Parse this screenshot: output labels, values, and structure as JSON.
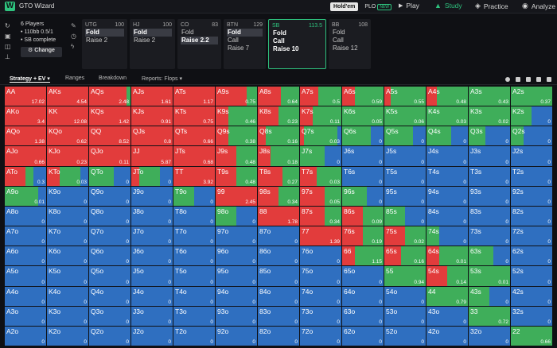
{
  "app": {
    "brand": "GTO Wizard",
    "logo_letter": "W"
  },
  "game_switch": {
    "holdem": "Hold'em",
    "plo": "PLO",
    "new_badge": "NEW"
  },
  "nav": [
    {
      "label": "Play",
      "icon": "play-icon",
      "glyph": "▶"
    },
    {
      "label": "Study",
      "icon": "study-icon",
      "glyph": "🎓"
    },
    {
      "label": "Practice",
      "icon": "practice-icon",
      "glyph": "🎮"
    },
    {
      "label": "Analyze",
      "icon": "analyze-icon",
      "glyph": "🤖"
    }
  ],
  "scenario": {
    "players": "6 Players",
    "stakes": "• 110bb 0.5/1",
    "status": "• SB complete",
    "change_label": "Change"
  },
  "positions": [
    {
      "name": "UTG",
      "stack": "100",
      "actions": [
        "Fold",
        "Raise 2"
      ],
      "selected": 0
    },
    {
      "name": "HJ",
      "stack": "100",
      "actions": [
        "Fold",
        "Raise 2"
      ],
      "selected": 0
    },
    {
      "name": "CO",
      "stack": "83",
      "actions": [
        "Fold",
        "Raise 2.2"
      ],
      "selected": 1
    },
    {
      "name": "BTN",
      "stack": "129",
      "actions": [
        "Fold",
        "Call",
        "Raise 7"
      ],
      "selected": 0
    },
    {
      "name": "SB",
      "stack": "113.5",
      "actions": [
        "Fold",
        "Call",
        "Raise 10"
      ],
      "selected": -1
    },
    {
      "name": "BB",
      "stack": "108",
      "actions": [
        "Fold",
        "Call",
        "Raise 12"
      ],
      "selected": -1
    }
  ],
  "subtabs": {
    "strategy": "Strategy + EV",
    "ranges": "Ranges",
    "breakdown": "Breakdown",
    "reports": "Reports: Flops"
  },
  "colors": {
    "fold": "#2f6fc0",
    "call": "#3fae5a",
    "raise": "#e23c3c",
    "accent": "#2ec27e"
  },
  "grid": {
    "ranks": [
      "A",
      "K",
      "Q",
      "J",
      "T",
      "9",
      "8",
      "7",
      "6",
      "5",
      "4",
      "3",
      "2"
    ],
    "ev": [
      [
        "17.02",
        "4.54",
        "2.48",
        "1.61",
        "1.17",
        "0.75",
        "0.64",
        "0.5",
        "0.59",
        "0.55",
        "0.48",
        "0.43",
        "0.37"
      ],
      [
        "3.4",
        "12.08",
        "1.42",
        "0.91",
        "0.75",
        "0.46",
        "0.23",
        "0.11",
        "0.05",
        "0.06",
        "0.03",
        "0.02",
        "0"
      ],
      [
        "1.38",
        "0.62",
        "8.52",
        "0.8",
        "0.66",
        "0.38",
        "0.16",
        "0.03",
        "0",
        "0",
        "0",
        "0",
        "0"
      ],
      [
        "0.66",
        "0.23",
        "0.11",
        "5.87",
        "0.68",
        "0.48",
        "0.18",
        "0",
        "0",
        "0",
        "0",
        "0",
        "0"
      ],
      [
        "0.3",
        "0.03",
        "0",
        "0",
        "3.92",
        "0.48",
        "0.27",
        "0.03",
        "0",
        "0",
        "0",
        "0",
        "0"
      ],
      [
        "0.01",
        "0",
        "0",
        "0",
        "0",
        "2.45",
        "0.34",
        "0.05",
        "0",
        "0",
        "0",
        "0",
        "0"
      ],
      [
        "0",
        "0",
        "0",
        "0",
        "0",
        "0",
        "1.78",
        "0.34",
        "0.09",
        "0",
        "0",
        "0",
        "0"
      ],
      [
        "0",
        "0",
        "0",
        "0",
        "0",
        "0",
        "0",
        "1.39",
        "0.19",
        "0.02",
        "0",
        "0",
        "0"
      ],
      [
        "0",
        "0",
        "0",
        "0",
        "0",
        "0",
        "0",
        "0",
        "1.15",
        "0.16",
        "0.01",
        "0",
        "0"
      ],
      [
        "0",
        "0",
        "0",
        "0",
        "0",
        "0",
        "0",
        "0",
        "0",
        "0.94",
        "0.14",
        "0.01",
        "0"
      ],
      [
        "0",
        "0",
        "0",
        "0",
        "0",
        "0",
        "0",
        "0",
        "0",
        "0",
        "0.79",
        "0",
        "0"
      ],
      [
        "0",
        "0",
        "0",
        "0",
        "0",
        "0",
        "0",
        "0",
        "0",
        "0",
        "0",
        "0.72",
        "0"
      ],
      [
        "0",
        "0",
        "0",
        "0",
        "0",
        "0",
        "0",
        "0",
        "0",
        "0",
        "0",
        "0",
        "0.66"
      ]
    ],
    "mix": [
      [
        [
          1,
          0,
          0
        ],
        [
          1,
          0,
          0
        ],
        [
          0.9,
          0.1,
          0
        ],
        [
          1,
          0,
          0
        ],
        [
          1,
          0,
          0
        ],
        [
          0.75,
          0.25,
          0
        ],
        [
          0.55,
          0.45,
          0
        ],
        [
          0.45,
          0.55,
          0
        ],
        [
          0.3,
          0.7,
          0
        ],
        [
          0.15,
          0.85,
          0
        ],
        [
          0.25,
          0.75,
          0
        ],
        [
          0,
          1,
          0
        ],
        [
          0,
          1,
          0
        ]
      ],
      [
        [
          1,
          0,
          0
        ],
        [
          1,
          0,
          0
        ],
        [
          1,
          0,
          0
        ],
        [
          1,
          0,
          0
        ],
        [
          1,
          0,
          0
        ],
        [
          0.3,
          0.7,
          0
        ],
        [
          0.5,
          0.5,
          0
        ],
        [
          0.3,
          0.7,
          0
        ],
        [
          0,
          1,
          0
        ],
        [
          0,
          1,
          0
        ],
        [
          0,
          1,
          0
        ],
        [
          0,
          1,
          0
        ],
        [
          0,
          0.5,
          0.5
        ]
      ],
      [
        [
          1,
          0,
          0
        ],
        [
          1,
          0,
          0
        ],
        [
          1,
          0,
          0
        ],
        [
          1,
          0,
          0
        ],
        [
          1,
          0,
          0
        ],
        [
          0.3,
          0.7,
          0
        ],
        [
          0.2,
          0.8,
          0
        ],
        [
          0.1,
          0.8,
          0.1
        ],
        [
          0,
          0.7,
          0.3
        ],
        [
          0,
          0.7,
          0.3
        ],
        [
          0,
          0.6,
          0.4
        ],
        [
          0,
          0.4,
          0.6
        ],
        [
          0,
          0.3,
          0.7
        ]
      ],
      [
        [
          1,
          0,
          0
        ],
        [
          1,
          0,
          0
        ],
        [
          1,
          0,
          0
        ],
        [
          1,
          0,
          0
        ],
        [
          1,
          0,
          0
        ],
        [
          0.5,
          0.5,
          0
        ],
        [
          0.3,
          0.7,
          0
        ],
        [
          0,
          0.6,
          0.4
        ],
        [
          0,
          0,
          1
        ],
        [
          0,
          0,
          1
        ],
        [
          0,
          0,
          1
        ],
        [
          0,
          0,
          1
        ],
        [
          0,
          0,
          1
        ]
      ],
      [
        [
          0.5,
          0.2,
          0.3
        ],
        [
          0.3,
          0.5,
          0.2
        ],
        [
          0,
          0.6,
          0.4
        ],
        [
          0.2,
          0.5,
          0.3
        ],
        [
          1,
          0,
          0
        ],
        [
          0.5,
          0.5,
          0
        ],
        [
          0.6,
          0.4,
          0
        ],
        [
          0.4,
          0.6,
          0
        ],
        [
          0,
          0,
          1
        ],
        [
          0,
          0,
          1
        ],
        [
          0,
          0,
          1
        ],
        [
          0,
          0,
          1
        ],
        [
          0,
          0,
          1
        ]
      ],
      [
        [
          0,
          0.8,
          0.2
        ],
        [
          0,
          0,
          1
        ],
        [
          0,
          0,
          1
        ],
        [
          0,
          0,
          1
        ],
        [
          0,
          0.5,
          0.5
        ],
        [
          1,
          0,
          0
        ],
        [
          0.5,
          0.5,
          0
        ],
        [
          0.6,
          0.4,
          0
        ],
        [
          0,
          0.6,
          0.4
        ],
        [
          0,
          0,
          1
        ],
        [
          0,
          0,
          1
        ],
        [
          0,
          0,
          1
        ],
        [
          0,
          0,
          1
        ]
      ],
      [
        [
          0,
          0,
          1
        ],
        [
          0,
          0,
          1
        ],
        [
          0,
          0,
          1
        ],
        [
          0,
          0,
          1
        ],
        [
          0,
          0,
          1
        ],
        [
          0,
          0.5,
          0.5
        ],
        [
          1,
          0,
          0
        ],
        [
          0.6,
          0.4,
          0
        ],
        [
          0.5,
          0.5,
          0
        ],
        [
          0,
          0.5,
          0.5
        ],
        [
          0,
          0,
          1
        ],
        [
          0,
          0,
          1
        ],
        [
          0,
          0,
          1
        ]
      ],
      [
        [
          0,
          0,
          1
        ],
        [
          0,
          0,
          1
        ],
        [
          0,
          0,
          1
        ],
        [
          0,
          0,
          1
        ],
        [
          0,
          0,
          1
        ],
        [
          0,
          0,
          1
        ],
        [
          0,
          0,
          1
        ],
        [
          1,
          0,
          0
        ],
        [
          0.5,
          0.5,
          0
        ],
        [
          0.5,
          0.5,
          0
        ],
        [
          0,
          0.3,
          0.7
        ],
        [
          0,
          0,
          1
        ],
        [
          0,
          0,
          1
        ]
      ],
      [
        [
          0,
          0,
          1
        ],
        [
          0,
          0,
          1
        ],
        [
          0,
          0,
          1
        ],
        [
          0,
          0,
          1
        ],
        [
          0,
          0,
          1
        ],
        [
          0,
          0,
          1
        ],
        [
          0,
          0,
          1
        ],
        [
          0,
          0,
          1
        ],
        [
          0.3,
          0.7,
          0
        ],
        [
          0.4,
          0.6,
          0
        ],
        [
          0.3,
          0.7,
          0
        ],
        [
          0,
          0.6,
          0.4
        ],
        [
          0,
          0,
          1
        ]
      ],
      [
        [
          0,
          0,
          1
        ],
        [
          0,
          0,
          1
        ],
        [
          0,
          0,
          1
        ],
        [
          0,
          0,
          1
        ],
        [
          0,
          0,
          1
        ],
        [
          0,
          0,
          1
        ],
        [
          0,
          0,
          1
        ],
        [
          0,
          0,
          1
        ],
        [
          0,
          0,
          1
        ],
        [
          0,
          1,
          0
        ],
        [
          0.5,
          0.5,
          0
        ],
        [
          0,
          1,
          0
        ],
        [
          0,
          0,
          1
        ]
      ],
      [
        [
          0,
          0,
          1
        ],
        [
          0,
          0,
          1
        ],
        [
          0,
          0,
          1
        ],
        [
          0,
          0,
          1
        ],
        [
          0,
          0,
          1
        ],
        [
          0,
          0,
          1
        ],
        [
          0,
          0,
          1
        ],
        [
          0,
          0,
          1
        ],
        [
          0,
          0,
          1
        ],
        [
          0,
          0,
          1
        ],
        [
          0,
          1,
          0
        ],
        [
          0,
          0.5,
          0.5
        ],
        [
          0,
          0,
          1
        ]
      ],
      [
        [
          0,
          0,
          1
        ],
        [
          0,
          0,
          1
        ],
        [
          0,
          0,
          1
        ],
        [
          0,
          0,
          1
        ],
        [
          0,
          0,
          1
        ],
        [
          0,
          0,
          1
        ],
        [
          0,
          0,
          1
        ],
        [
          0,
          0,
          1
        ],
        [
          0,
          0,
          1
        ],
        [
          0,
          0,
          1
        ],
        [
          0,
          0,
          1
        ],
        [
          0,
          1,
          0
        ],
        [
          0,
          0,
          1
        ]
      ],
      [
        [
          0,
          0,
          1
        ],
        [
          0,
          0,
          1
        ],
        [
          0,
          0,
          1
        ],
        [
          0,
          0,
          1
        ],
        [
          0,
          0,
          1
        ],
        [
          0,
          0,
          1
        ],
        [
          0,
          0,
          1
        ],
        [
          0,
          0,
          1
        ],
        [
          0,
          0,
          1
        ],
        [
          0,
          0,
          1
        ],
        [
          0,
          0,
          1
        ],
        [
          0,
          0,
          1
        ],
        [
          0,
          1,
          0
        ]
      ]
    ]
  }
}
